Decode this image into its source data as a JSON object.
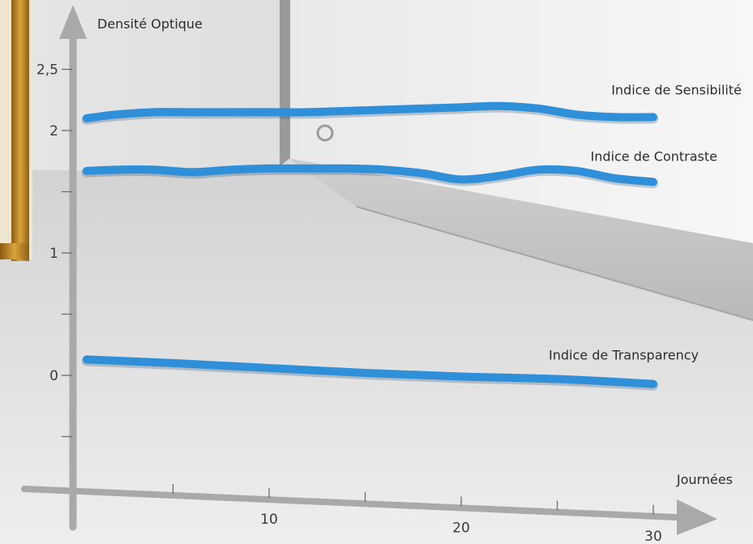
{
  "chart_data": {
    "type": "line",
    "ylabel": "Densité Optique",
    "xlabel": "Journées",
    "xlim": [
      0,
      30
    ],
    "ylim": [
      -1,
      3
    ],
    "x_ticks": [
      {
        "value": 5,
        "label": ""
      },
      {
        "value": 10,
        "label": "10"
      },
      {
        "value": 15,
        "label": ""
      },
      {
        "value": 20,
        "label": "20"
      },
      {
        "value": 25,
        "label": ""
      },
      {
        "value": 30,
        "label": "30"
      }
    ],
    "y_ticks": [
      {
        "value": 2.5,
        "label": "2,5"
      },
      {
        "value": 2,
        "label": "2"
      },
      {
        "value": 1.5,
        "label": ""
      },
      {
        "value": 1,
        "label": "1"
      },
      {
        "value": 0.5,
        "label": ""
      },
      {
        "value": 0,
        "label": "0"
      },
      {
        "value": -0.5,
        "label": ""
      }
    ],
    "series": [
      {
        "name": "Indice de Sensibilité",
        "x": [
          0.5,
          2,
          4,
          6,
          8,
          10,
          12,
          14,
          16,
          18,
          20,
          22,
          24,
          26,
          28,
          30
        ],
        "y": [
          2.1,
          2.13,
          2.15,
          2.15,
          2.15,
          2.15,
          2.15,
          2.16,
          2.17,
          2.18,
          2.19,
          2.2,
          2.18,
          2.13,
          2.11,
          2.11
        ]
      },
      {
        "name": "Indice de Contraste",
        "x": [
          0.5,
          2,
          4,
          6,
          8,
          10,
          12,
          14,
          16,
          18,
          20,
          22,
          24,
          26,
          28,
          30
        ],
        "y": [
          1.67,
          1.68,
          1.68,
          1.66,
          1.68,
          1.69,
          1.69,
          1.69,
          1.68,
          1.65,
          1.6,
          1.63,
          1.68,
          1.67,
          1.61,
          1.58
        ]
      },
      {
        "name": "Indice de Transparency",
        "x": [
          0.5,
          5,
          10,
          15,
          20,
          25,
          30
        ],
        "y": [
          0.13,
          0.1,
          0.06,
          0.02,
          -0.01,
          -0.03,
          -0.07
        ]
      }
    ],
    "line_color": "#2f8fd8",
    "axis_color": "#a9a9a9",
    "grid": false
  }
}
